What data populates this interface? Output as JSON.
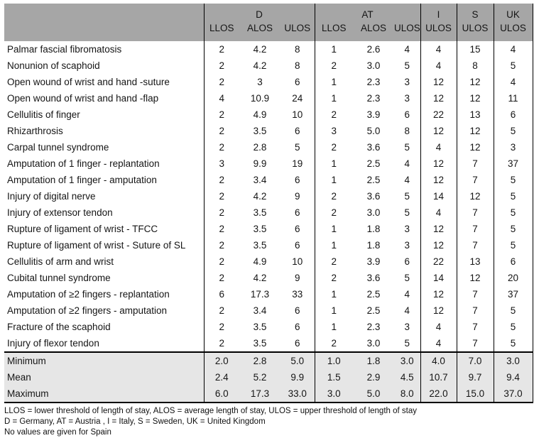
{
  "colors": {
    "header_bg": "#a6a6a6",
    "summary_bg": "#e6e6e6",
    "border": "#000000"
  },
  "table": {
    "column_groups": [
      {
        "label": "D",
        "subcols": [
          "LLOS",
          "ALOS",
          "ULOS"
        ]
      },
      {
        "label": "AT",
        "subcols": [
          "LLOS",
          "ALOS",
          "ULOS"
        ]
      },
      {
        "label": "I",
        "subcols": [
          "ULOS"
        ]
      },
      {
        "label": "S",
        "subcols": [
          "ULOS"
        ]
      },
      {
        "label": "UK",
        "subcols": [
          "ULOS"
        ]
      }
    ],
    "rows": [
      {
        "label": "Palmar fascial fibromatosis",
        "values": [
          "2",
          "4.2",
          "8",
          "1",
          "2.6",
          "4",
          "4",
          "15",
          "4"
        ]
      },
      {
        "label": "Nonunion of scaphoid",
        "values": [
          "2",
          "4.2",
          "8",
          "2",
          "3.0",
          "5",
          "4",
          "8",
          "5"
        ]
      },
      {
        "label": "Open wound of wrist and hand -suture",
        "values": [
          "2",
          "3",
          "6",
          "1",
          "2.3",
          "3",
          "12",
          "12",
          "4"
        ]
      },
      {
        "label": "Open wound of wrist and hand -flap",
        "values": [
          "4",
          "10.9",
          "24",
          "1",
          "2.3",
          "3",
          "12",
          "12",
          "11"
        ]
      },
      {
        "label": "Cellulitis of finger",
        "values": [
          "2",
          "4.9",
          "10",
          "2",
          "3.9",
          "6",
          "22",
          "13",
          "6"
        ]
      },
      {
        "label": "Rhizarthrosis",
        "values": [
          "2",
          "3.5",
          "6",
          "3",
          "5.0",
          "8",
          "12",
          "12",
          "5"
        ]
      },
      {
        "label": "Carpal tunnel syndrome",
        "values": [
          "2",
          "2.8",
          "5",
          "2",
          "3.6",
          "5",
          "4",
          "12",
          "3"
        ]
      },
      {
        "label": "Amputation of 1 finger - replantation",
        "values": [
          "3",
          "9.9",
          "19",
          "1",
          "2.5",
          "4",
          "12",
          "7",
          "37"
        ]
      },
      {
        "label": "Amputation of 1 finger - amputation",
        "values": [
          "2",
          "3.4",
          "6",
          "1",
          "2.5",
          "4",
          "12",
          "7",
          "5"
        ]
      },
      {
        "label": "Injury of digital nerve",
        "values": [
          "2",
          "4.2",
          "9",
          "2",
          "3.6",
          "5",
          "14",
          "12",
          "5"
        ]
      },
      {
        "label": "Injury of extensor tendon",
        "values": [
          "2",
          "3.5",
          "6",
          "2",
          "3.0",
          "5",
          "4",
          "7",
          "5"
        ]
      },
      {
        "label": "Rupture of ligament of wrist - TFCC",
        "values": [
          "2",
          "3.5",
          "6",
          "1",
          "1.8",
          "3",
          "12",
          "7",
          "5"
        ]
      },
      {
        "label": "Rupture of ligament of wrist - Suture of SL",
        "values": [
          "2",
          "3.5",
          "6",
          "1",
          "1.8",
          "3",
          "12",
          "7",
          "5"
        ]
      },
      {
        "label": "Cellulitis of arm and wrist",
        "values": [
          "2",
          "4.9",
          "10",
          "2",
          "3.9",
          "6",
          "22",
          "13",
          "6"
        ]
      },
      {
        "label": "Cubital tunnel syndrome",
        "values": [
          "2",
          "4.2",
          "9",
          "2",
          "3.6",
          "5",
          "14",
          "12",
          "20"
        ]
      },
      {
        "label": "Amputation of ≥2 fingers - replantation",
        "values": [
          "6",
          "17.3",
          "33",
          "1",
          "2.5",
          "4",
          "12",
          "7",
          "37"
        ]
      },
      {
        "label": "Amputation of ≥2 fingers - amputation",
        "values": [
          "2",
          "3.4",
          "6",
          "1",
          "2.5",
          "4",
          "12",
          "7",
          "5"
        ]
      },
      {
        "label": "Fracture of the scaphoid",
        "values": [
          "2",
          "3.5",
          "6",
          "1",
          "2.3",
          "3",
          "4",
          "7",
          "5"
        ]
      },
      {
        "label": "Injury of flexor tendon",
        "values": [
          "2",
          "3.5",
          "6",
          "2",
          "3.0",
          "5",
          "4",
          "7",
          "5"
        ]
      }
    ],
    "summary_rows": [
      {
        "label": "Minimum",
        "values": [
          "2.0",
          "2.8",
          "5.0",
          "1.0",
          "1.8",
          "3.0",
          "4.0",
          "7.0",
          "3.0"
        ]
      },
      {
        "label": "Mean",
        "values": [
          "2.4",
          "5.2",
          "9.9",
          "1.5",
          "2.9",
          "4.5",
          "10.7",
          "9.7",
          "9.4"
        ]
      },
      {
        "label": "Maximum",
        "values": [
          "6.0",
          "17.3",
          "33.0",
          "3.0",
          "5.0",
          "8.0",
          "22.0",
          "15.0",
          "37.0"
        ]
      }
    ],
    "footnotes": [
      "LLOS = lower threshold of length of stay, ALOS = average length of stay, ULOS = upper threshold of length of stay",
      "D = Germany, AT = Austria , I = Italy, S = Sweden, UK = United Kingdom",
      "No values are given for Spain"
    ]
  }
}
